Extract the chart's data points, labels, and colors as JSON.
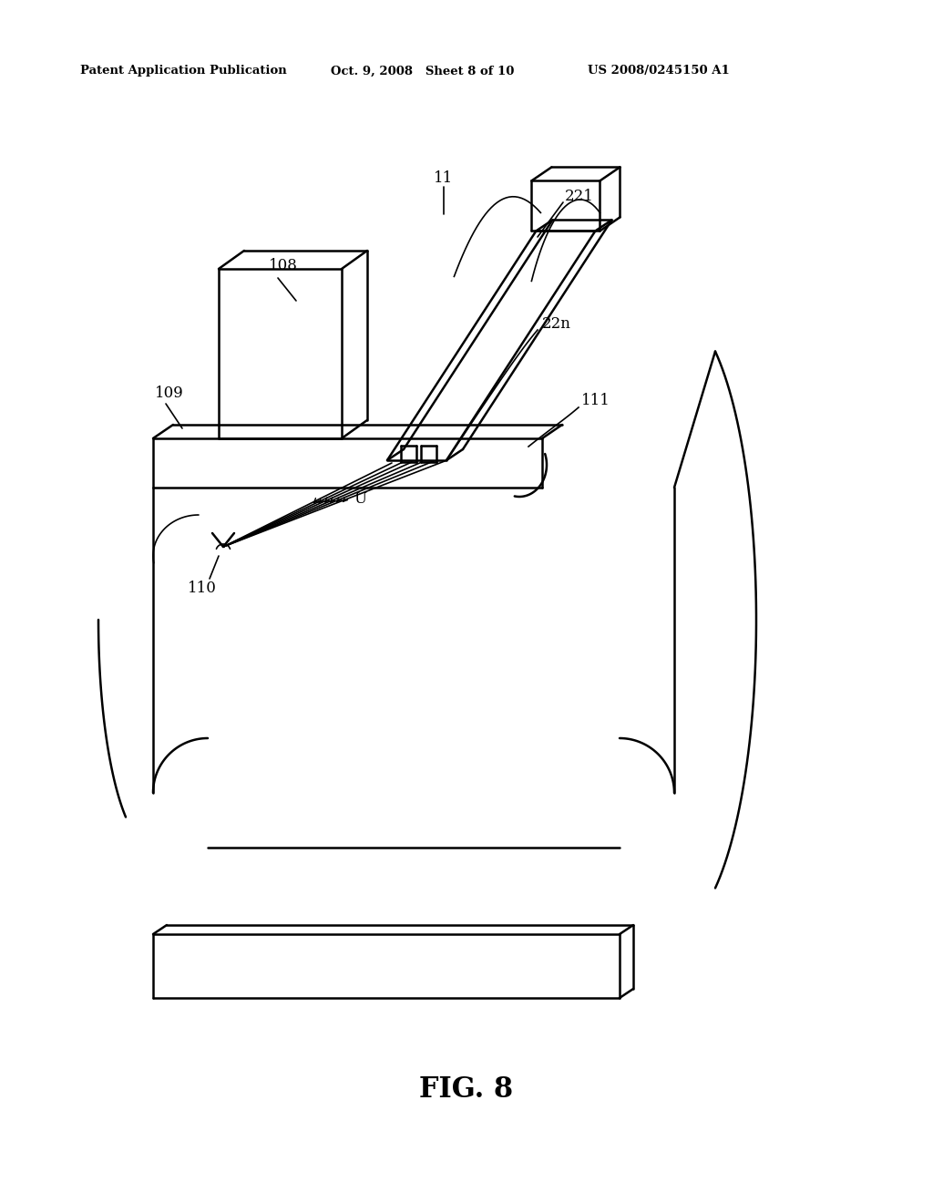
{
  "bg_color": "#ffffff",
  "line_color": "#000000",
  "fig_label": "FIG. 8",
  "header_left": "Patent Application Publication",
  "header_mid": "Oct. 9, 2008   Sheet 8 of 10",
  "header_right": "US 2008/0245150 A1",
  "lw": 1.8,
  "lw_thin": 1.2
}
